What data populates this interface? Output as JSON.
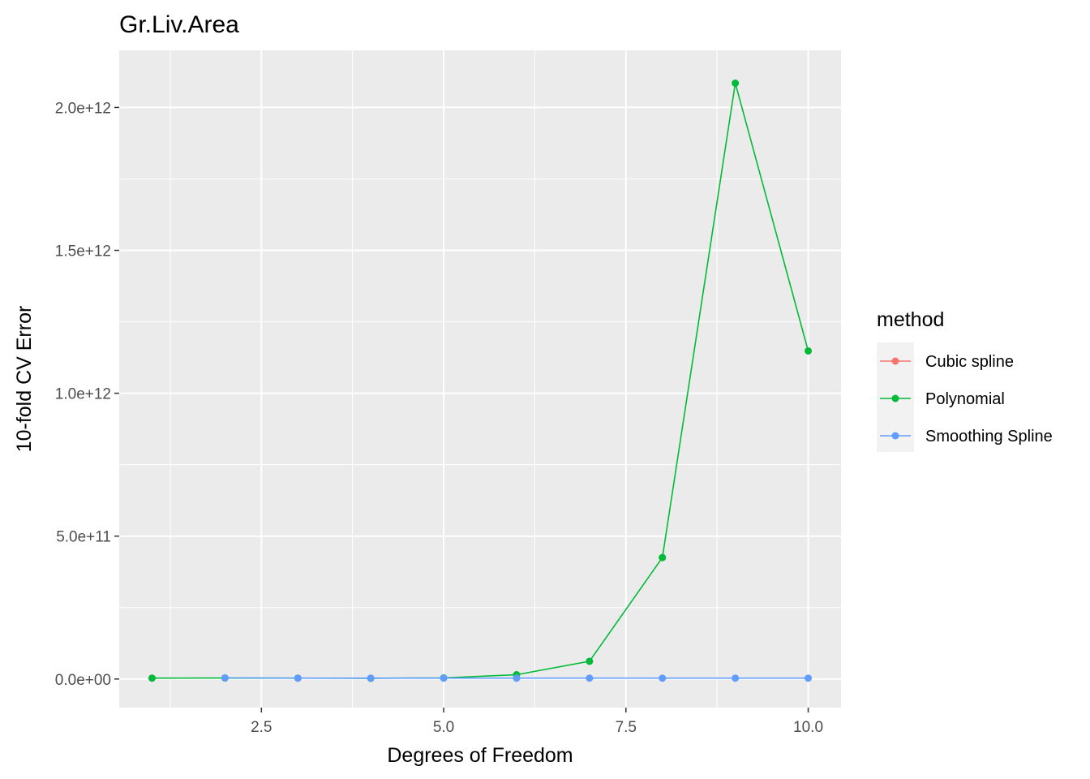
{
  "chart_data": {
    "type": "line",
    "title": "Gr.Liv.Area",
    "xlabel": "Degrees of Freedom",
    "ylabel": "10-fold CV Error",
    "xlim": [
      0.55,
      10.45
    ],
    "ylim": [
      -100000000000.0,
      2200000000000.0
    ],
    "x_ticks": [
      2.5,
      5.0,
      7.5,
      10.0
    ],
    "x_tick_labels": [
      "2.5",
      "5.0",
      "7.5",
      "10.0"
    ],
    "y_ticks": [
      0,
      500000000000.0,
      1000000000000.0,
      1500000000000.0,
      2000000000000.0
    ],
    "y_tick_labels": [
      "0.0e+00",
      "5.0e+11",
      "1.0e+12",
      "1.5e+12",
      "2.0e+12"
    ],
    "grid": true,
    "legend": {
      "title": "method",
      "position": "right"
    },
    "series": [
      {
        "name": "Cubic spline",
        "color": "#F8766D",
        "x": [
          3
        ],
        "y": [
          3000000000.0
        ]
      },
      {
        "name": "Polynomial",
        "color": "#00BA38",
        "x": [
          1,
          2,
          3,
          4,
          5,
          6,
          7,
          8,
          9,
          10
        ],
        "y": [
          3000000000.0,
          3500000000.0,
          3000000000.0,
          2500000000.0,
          4000000000.0,
          15000000000.0,
          62000000000.0,
          425000000000.0,
          2085000000000.0,
          1148000000000.0
        ]
      },
      {
        "name": "Smoothing Spline",
        "color": "#619CFF",
        "x": [
          2,
          3,
          4,
          5,
          6,
          7,
          8,
          9,
          10
        ],
        "y": [
          4000000000.0,
          3000000000.0,
          3000000000.0,
          3000000000.0,
          3000000000.0,
          3000000000.0,
          3000000000.0,
          3000000000.0,
          3000000000.0
        ]
      }
    ]
  }
}
